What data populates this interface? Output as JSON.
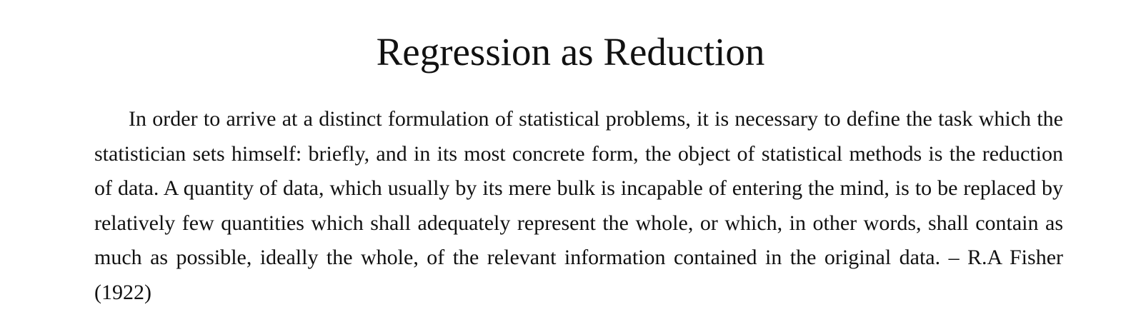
{
  "document": {
    "title": "Regression as Reduction",
    "paragraph": "In order to arrive at a distinct formulation of statistical problems, it is necessary to define the task which the statistician sets himself: briefly, and in its most concrete form, the object of statistical methods is the reduction of data. A quantity of data, which usually by its mere bulk is incapable of entering the mind, is to be replaced by relatively few quantities which shall adequately represent the whole, or which, in other words, shall contain as much as possible, ideally the whole, of the relevant information contained in the original data.",
    "attribution": "– R.A Fisher (1922)"
  }
}
